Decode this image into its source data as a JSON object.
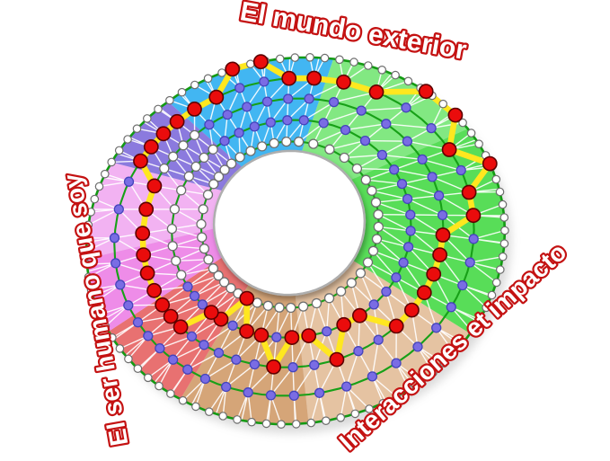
{
  "labels": {
    "top": "El mundo exterior",
    "left": "El ser humano que soy",
    "right": "Interacciones et impacto",
    "label_color": "#c41212",
    "label_fill": "#ffffff"
  },
  "chart_data": {
    "type": "wheel-graph",
    "description_levels": [
      1,
      2,
      3,
      4,
      5
    ],
    "rings": 4,
    "boundary_node_count": 88,
    "style": {
      "ring_stroke": "#17a017",
      "boundary_stroke": "#129a12",
      "mesh_stroke": "#ffffff",
      "profile_stroke": "#ffe71f",
      "node_plain_fill": "#ffffff",
      "node_plain_stroke": "#6e6e6e",
      "node_violet_fill": "#7a6ce4",
      "node_violet_stroke": "#4444bb",
      "node_selected_fill": "#ea0c0c",
      "node_selected_stroke": "#5e0000",
      "hole_fill": "#ffffff",
      "hole_stroke": "#aeaeae"
    },
    "sectors": [
      {
        "id": "blue",
        "color": "#42b6f2",
        "start": 118,
        "span": 48,
        "ring_pattern": "wvvv",
        "selected_levels": [
          4,
          4,
          5,
          5,
          4,
          4
        ]
      },
      {
        "id": "green-pale",
        "color": "#82e882",
        "start": 70,
        "span": 45,
        "ring_pattern": "wvvv",
        "selected_levels": [
          4,
          4,
          5,
          5
        ]
      },
      {
        "id": "green-vivid",
        "color": "#58dd58",
        "start": 25,
        "span": 68,
        "ring_pattern": "wvvv",
        "selected_levels": [
          4,
          5,
          4,
          4,
          3,
          3,
          3,
          3
        ]
      },
      {
        "id": "tan-light",
        "color": "#e5c3a2",
        "start": -43,
        "span": 53,
        "ring_pattern": "wvvv",
        "selected_levels": [
          3,
          3,
          2,
          2,
          3,
          2
        ]
      },
      {
        "id": "tan-dark",
        "color": "#d5a578",
        "start": -96,
        "span": 37,
        "ring_pattern": "wvvv",
        "selected_levels": [
          2,
          3,
          2,
          2,
          1
        ]
      },
      {
        "id": "red",
        "color": "#e87171",
        "start": -133,
        "span": 30,
        "ring_pattern": "wvvv",
        "selected_levels": [
          2,
          2,
          3,
          3,
          3
        ]
      },
      {
        "id": "pink-bright",
        "color": "#ee8ce8",
        "start": -163,
        "span": 24,
        "ring_pattern": "wwwv",
        "selected_levels": [
          3,
          3,
          3
        ]
      },
      {
        "id": "pink-pale",
        "color": "#f2b2f2",
        "start": -187,
        "span": 31,
        "ring_pattern": "wwwv",
        "selected_levels": [
          3,
          3,
          3
        ]
      },
      {
        "id": "purple",
        "color": "#8b7ade",
        "start": -218,
        "span": 24,
        "ring_pattern": "wwww",
        "selected_levels": [
          4,
          4,
          4,
          4
        ]
      }
    ]
  }
}
